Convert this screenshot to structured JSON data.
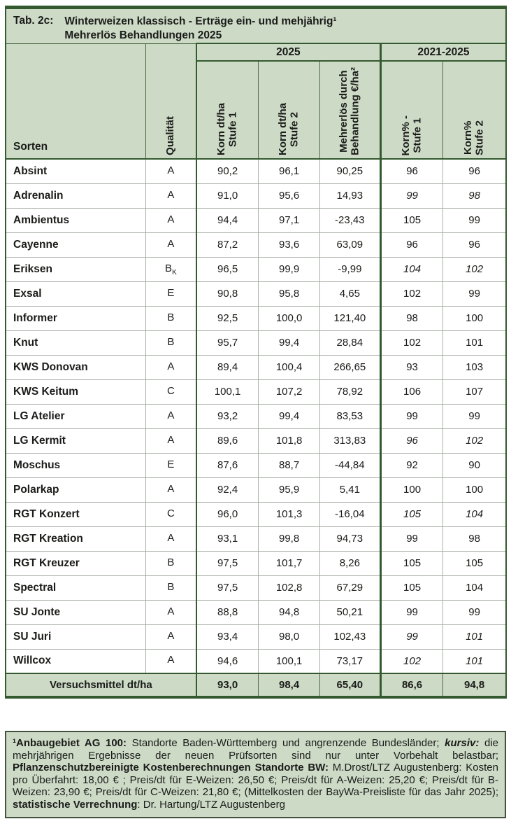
{
  "colors": {
    "bg_green": "#ccdac6",
    "border_dark": "#335a2f",
    "line_thin_dark": "#4c6a45",
    "line_thin_light": "#a9b0a6",
    "text": "#1b1b19",
    "footnote_border": "#44523f"
  },
  "title": {
    "prefix": "Tab. 2c:",
    "line1": "Winterweizen klassisch - Erträge ein- und mehjährig¹",
    "line2": "Mehrerlös Behandlungen 2025"
  },
  "table": {
    "group_headers": {
      "y2025": "2025",
      "y2021_2025": "2021-2025"
    },
    "col_headers": {
      "sorten": "Sorten",
      "qualitaet": "Qualität",
      "k1_l1": "Korn dt/ha",
      "k1_l2": "Stufe 1",
      "k2_l1": "Korn dt/ha",
      "k2_l2": "Stufe 2",
      "m_l1": "Mehrerlös durch",
      "m_l2": "Behandlung  €/ha²",
      "kp1_l1": "Korn% -",
      "kp1_l2": "Stufe 1",
      "kp2_l1": "Korn%",
      "kp2_l2": "Stufe 2"
    },
    "rows": [
      {
        "sorte": "Absint",
        "qual": "A",
        "qual_sub": "",
        "k1": "90,2",
        "k2": "96,1",
        "m": "90,25",
        "kp1": "96",
        "kp2": "96",
        "italic": false
      },
      {
        "sorte": "Adrenalin",
        "qual": "A",
        "qual_sub": "",
        "k1": "91,0",
        "k2": "95,6",
        "m": "14,93",
        "kp1": "99",
        "kp2": "98",
        "italic": true
      },
      {
        "sorte": "Ambientus",
        "qual": "A",
        "qual_sub": "",
        "k1": "94,4",
        "k2": "97,1",
        "m": "-23,43",
        "kp1": "105",
        "kp2": "99",
        "italic": false
      },
      {
        "sorte": "Cayenne",
        "qual": "A",
        "qual_sub": "",
        "k1": "87,2",
        "k2": "93,6",
        "m": "63,09",
        "kp1": "96",
        "kp2": "96",
        "italic": false
      },
      {
        "sorte": "Eriksen",
        "qual": "B",
        "qual_sub": "K",
        "k1": "96,5",
        "k2": "99,9",
        "m": "-9,99",
        "kp1": "104",
        "kp2": "102",
        "italic": true
      },
      {
        "sorte": "Exsal",
        "qual": "E",
        "qual_sub": "",
        "k1": "90,8",
        "k2": "95,8",
        "m": "4,65",
        "kp1": "102",
        "kp2": "99",
        "italic": false
      },
      {
        "sorte": "Informer",
        "qual": "B",
        "qual_sub": "",
        "k1": "92,5",
        "k2": "100,0",
        "m": "121,40",
        "kp1": "98",
        "kp2": "100",
        "italic": false
      },
      {
        "sorte": "Knut",
        "qual": "B",
        "qual_sub": "",
        "k1": "95,7",
        "k2": "99,4",
        "m": "28,84",
        "kp1": "102",
        "kp2": "101",
        "italic": false
      },
      {
        "sorte": "KWS Donovan",
        "qual": "A",
        "qual_sub": "",
        "k1": "89,4",
        "k2": "100,4",
        "m": "266,65",
        "kp1": "93",
        "kp2": "103",
        "italic": false
      },
      {
        "sorte": "KWS Keitum",
        "qual": "C",
        "qual_sub": "",
        "k1": "100,1",
        "k2": "107,2",
        "m": "78,92",
        "kp1": "106",
        "kp2": "107",
        "italic": false
      },
      {
        "sorte": "LG Atelier",
        "qual": "A",
        "qual_sub": "",
        "k1": "93,2",
        "k2": "99,4",
        "m": "83,53",
        "kp1": "99",
        "kp2": "99",
        "italic": false
      },
      {
        "sorte": "LG Kermit",
        "qual": "A",
        "qual_sub": "",
        "k1": "89,6",
        "k2": "101,8",
        "m": "313,83",
        "kp1": "96",
        "kp2": "102",
        "italic": true
      },
      {
        "sorte": "Moschus",
        "qual": "E",
        "qual_sub": "",
        "k1": "87,6",
        "k2": "88,7",
        "m": "-44,84",
        "kp1": "92",
        "kp2": "90",
        "italic": false
      },
      {
        "sorte": "Polarkap",
        "qual": "A",
        "qual_sub": "",
        "k1": "92,4",
        "k2": "95,9",
        "m": "5,41",
        "kp1": "100",
        "kp2": "100",
        "italic": false
      },
      {
        "sorte": "RGT Konzert",
        "qual": "C",
        "qual_sub": "",
        "k1": "96,0",
        "k2": "101,3",
        "m": "-16,04",
        "kp1": "105",
        "kp2": "104",
        "italic": true
      },
      {
        "sorte": "RGT Kreation",
        "qual": "A",
        "qual_sub": "",
        "k1": "93,1",
        "k2": "99,8",
        "m": "94,73",
        "kp1": "99",
        "kp2": "98",
        "italic": false
      },
      {
        "sorte": "RGT Kreuzer",
        "qual": "B",
        "qual_sub": "",
        "k1": "97,5",
        "k2": "101,7",
        "m": "8,26",
        "kp1": "105",
        "kp2": "105",
        "italic": false
      },
      {
        "sorte": "Spectral",
        "qual": "B",
        "qual_sub": "",
        "k1": "97,5",
        "k2": "102,8",
        "m": "67,29",
        "kp1": "105",
        "kp2": "104",
        "italic": false
      },
      {
        "sorte": "SU Jonte",
        "qual": "A",
        "qual_sub": "",
        "k1": "88,8",
        "k2": "94,8",
        "m": "50,21",
        "kp1": "99",
        "kp2": "99",
        "italic": false
      },
      {
        "sorte": "SU Juri",
        "qual": "A",
        "qual_sub": "",
        "k1": "93,4",
        "k2": "98,0",
        "m": "102,43",
        "kp1": "99",
        "kp2": "101",
        "italic": true
      },
      {
        "sorte": "Willcox",
        "qual": "A",
        "qual_sub": "",
        "k1": "94,6",
        "k2": "100,1",
        "m": "73,17",
        "kp1": "102",
        "kp2": "101",
        "italic": true
      }
    ],
    "footer": {
      "label": "Versuchsmittel dt/ha",
      "k1": "93,0",
      "k2": "98,4",
      "m": "65,40",
      "kp1": "86,6",
      "kp2": "94,8"
    }
  },
  "footnote": {
    "segments": [
      {
        "text": "¹Anbaugebiet AG 100:",
        "bold": true
      },
      {
        "text": " Standorte Baden-Württemberg und angrenzende Bundesländer; "
      },
      {
        "text": "kursiv:",
        "bold": true,
        "italic": true
      },
      {
        "text": " die mehr­jährigen Ergebnisse der neuen Prüfsorten sind nur unter Vorbehalt belastbar; "
      },
      {
        "text": "Pflanzenschutzbereinigte Kostenberechnungen Standorte BW:",
        "bold": true
      },
      {
        "text": " M.Drost/LTZ Augustenberg: Kosten pro Überfahrt: 18,00 € ; Preis/dt für E-Weizen: 26,50 €; Preis/dt für A-Weizen: 25,20 €; Preis/dt für B-Weizen: 23,90 €; Preis/dt für C-Weizen: 21,80 €; (Mittelkosten der BayWa-Preisliste für das Jahr 2025); "
      },
      {
        "text": "statistische Verrechnung",
        "bold": true
      },
      {
        "text": ": Dr. Hartung/LTZ Augustenberg"
      }
    ]
  }
}
